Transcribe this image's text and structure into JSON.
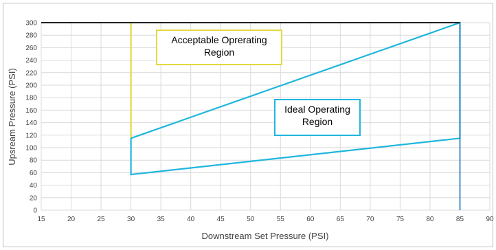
{
  "chart_data": {
    "type": "line",
    "title": "",
    "xlabel": "Downstream Set Pressure (PSI)",
    "ylabel": "Upsream Pressure (PSI)",
    "xlim": [
      15,
      90
    ],
    "ylim": [
      0,
      300
    ],
    "x_ticks": [
      "15",
      "20",
      "25",
      "30",
      "35",
      "40",
      "45",
      "50",
      "55",
      "60",
      "65",
      "70",
      "75",
      "80",
      "85",
      "90"
    ],
    "y_ticks": [
      "0",
      "20",
      "40",
      "60",
      "80",
      "100",
      "120",
      "140",
      "160",
      "180",
      "200",
      "220",
      "240",
      "260",
      "280",
      "300"
    ],
    "grid": true,
    "legend": "none",
    "colors": {
      "acceptable": "#e3d93f",
      "ideal": "#1fb6dd",
      "top_line": "#000000",
      "right_line": "#2e86c1",
      "grid": "#d9d9d9",
      "frame": "#bfbfbf"
    },
    "series": [
      {
        "x": [
          30,
          30
        ],
        "y": [
          300,
          115
        ]
      },
      {
        "x": [
          30,
          85,
          85,
          30,
          30
        ],
        "y": [
          115,
          300,
          115,
          57,
          115
        ]
      },
      {
        "x": [
          15,
          85
        ],
        "y": [
          300,
          300
        ]
      },
      {
        "x": [
          85,
          85
        ],
        "y": [
          300,
          0
        ]
      }
    ],
    "annotations": [
      {
        "lines": [
          "Acceptable Oprerating",
          "Region"
        ],
        "color": "#e3d93f"
      },
      {
        "lines": [
          "Ideal Operating",
          "Region"
        ],
        "color": "#1fb6dd"
      }
    ]
  }
}
